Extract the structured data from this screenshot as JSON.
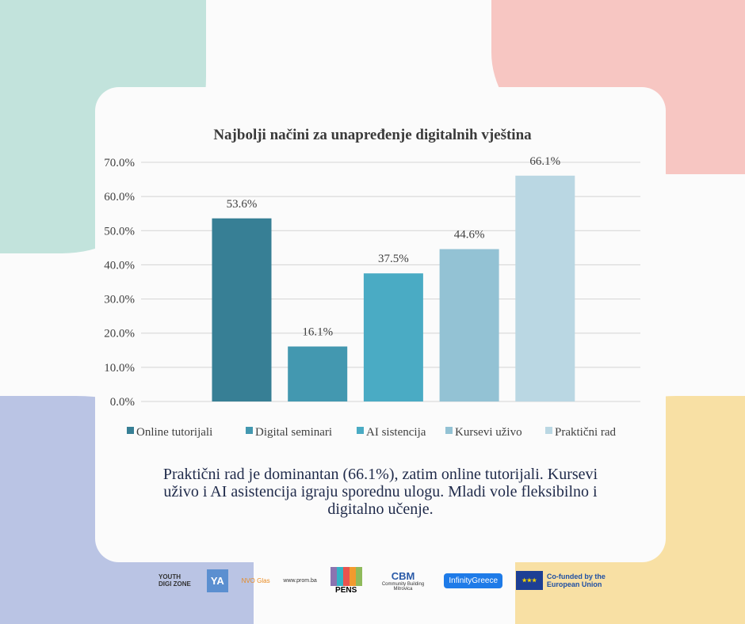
{
  "chart_data": {
    "type": "bar",
    "title": "Najbolji načini za unapređenje digitalnih vještina",
    "categories": [
      "Online tutorijali",
      "Digital seminari",
      "AI sistencija",
      "Kursevi uživo",
      "Praktični rad"
    ],
    "values": [
      53.6,
      16.1,
      37.5,
      44.6,
      66.1
    ],
    "data_labels": [
      "53.6%",
      "16.1%",
      "37.5%",
      "44.6%",
      "66.1%"
    ],
    "colors": [
      "#377f95",
      "#4398b0",
      "#4aabc4",
      "#93c2d4",
      "#bad7e3"
    ],
    "yticks": [
      "0.0%",
      "10.0%",
      "20.0%",
      "30.0%",
      "40.0%",
      "50.0%",
      "60.0%",
      "70.0%"
    ],
    "ylim": [
      0,
      70
    ],
    "grid": true,
    "legend_position": "bottom",
    "xlabel": "",
    "ylabel": ""
  },
  "caption": "Praktični rad je dominantan (66.1%), zatim online tutorijali. Kursevi uživo i AI asistencija igraju sporednu ulogu. Mladi vole fleksibilno i digitalno učenje.",
  "logos": {
    "youth": "YOUTH DIGI ZONE",
    "ya": "YA",
    "nvo": "NVO Glas",
    "prom": "www.prom.ba",
    "pens": "PENS",
    "cbm": "CBM",
    "cbm_sub": "Community Building Mitrovica",
    "infinity": "InfinityGreece",
    "eu": "Co-funded by the European Union"
  }
}
